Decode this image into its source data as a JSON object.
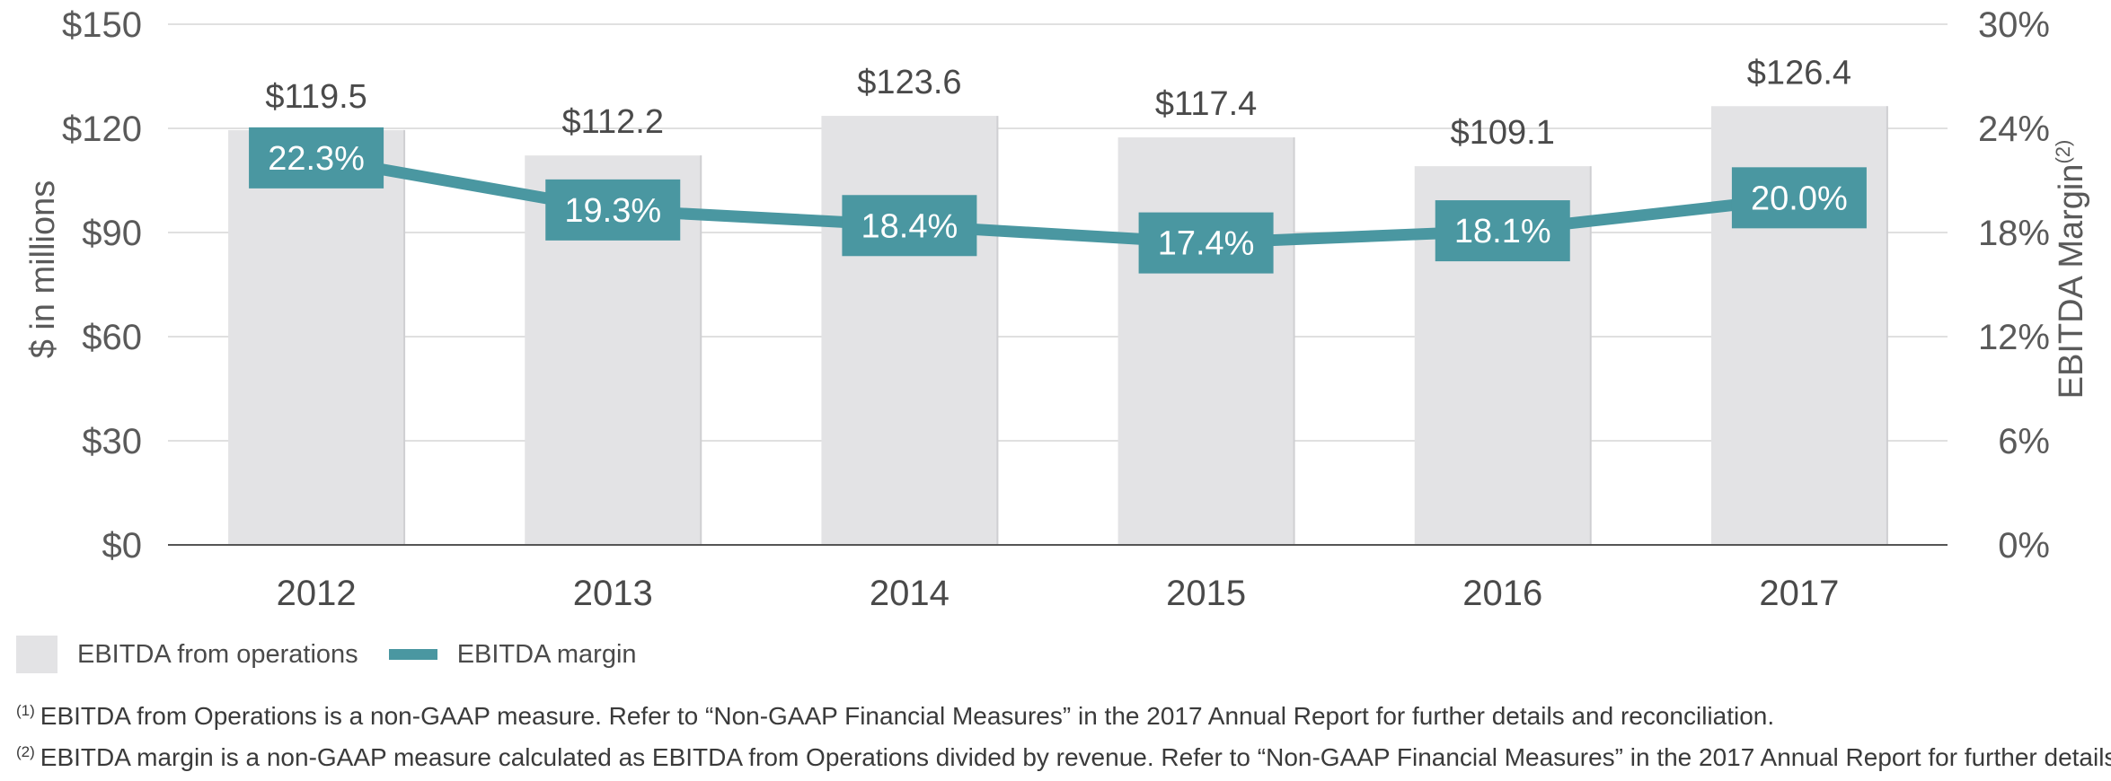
{
  "chart_data": {
    "type": "bar",
    "categories": [
      "2012",
      "2013",
      "2014",
      "2015",
      "2016",
      "2017"
    ],
    "series": [
      {
        "name": "EBITDA from operations",
        "type": "bar",
        "axis": "left",
        "values": [
          119.5,
          112.2,
          123.6,
          117.4,
          109.1,
          126.4
        ],
        "labels": [
          "$119.5",
          "$112.2",
          "$123.6",
          "$117.4",
          "$109.1",
          "$126.4"
        ],
        "color": "#e3e3e5"
      },
      {
        "name": "EBITDA margin",
        "type": "line",
        "axis": "right",
        "values": [
          22.3,
          19.3,
          18.4,
          17.4,
          18.1,
          20.0
        ],
        "labels": [
          "22.3%",
          "19.3%",
          "18.4%",
          "17.4%",
          "18.1%",
          "20.0%"
        ],
        "color": "#4a97a1"
      }
    ],
    "ylabel": "$ in millions",
    "ylabel_right": "EBITDA Margin",
    "ylabel_right_sup": "(2)",
    "ylim": [
      0,
      150
    ],
    "ylim_right": [
      0,
      30
    ],
    "yticks": [
      "$0",
      "$30",
      "$60",
      "$90",
      "$120",
      "$150"
    ],
    "yticks_right": [
      "0%",
      "6%",
      "12%",
      "18%",
      "24%",
      "30%"
    ],
    "grid": true,
    "legend_position": "bottom-left"
  },
  "footnotes": [
    {
      "mark": "(1)",
      "text": "EBITDA from Operations is a non-GAAP measure. Refer to “Non-GAAP Financial Measures” in the 2017 Annual Report for further details and reconciliation."
    },
    {
      "mark": "(2)",
      "text": "EBITDA margin is a non-GAAP measure calculated as EBITDA from Operations divided by revenue. Refer to “Non-GAAP Financial Measures” in the 2017 Annual Report for further details."
    }
  ]
}
